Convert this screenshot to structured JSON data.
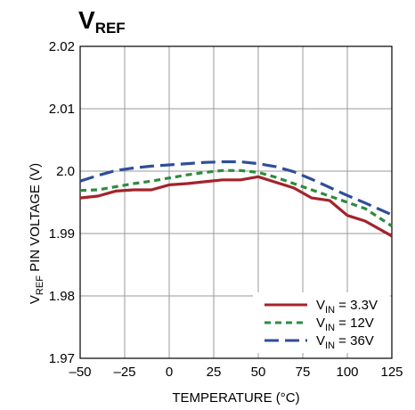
{
  "chart_data": {
    "type": "line",
    "title": {
      "main": "V",
      "sub": "REF"
    },
    "xlabel": "TEMPERATURE (°C)",
    "ylabel": {
      "prefix": "V",
      "sub": "REF",
      "rest": " PIN VOLTAGE (V)"
    },
    "xlim": [
      -50,
      125
    ],
    "ylim": [
      1.97,
      2.02
    ],
    "xticks": [
      -50,
      -25,
      0,
      25,
      50,
      75,
      100,
      125
    ],
    "xtick_labels": [
      "–50",
      "–25",
      "0",
      "25",
      "50",
      "75",
      "100",
      "125"
    ],
    "yticks": [
      1.97,
      1.98,
      1.99,
      2.0,
      2.01,
      2.02
    ],
    "ytick_labels": [
      "1.97",
      "1.98",
      "1.99",
      "2.0",
      "2.01",
      "2.02"
    ],
    "grid": true,
    "legend_position": "bottom-right",
    "series": [
      {
        "name": {
          "prefix": "V",
          "sub": "IN",
          "rest": " = 3.3V"
        },
        "color": "#a3242a",
        "dash": "solid",
        "x": [
          -50,
          -40,
          -30,
          -20,
          -10,
          0,
          10,
          20,
          30,
          40,
          50,
          60,
          70,
          80,
          90,
          100,
          110,
          125
        ],
        "y": [
          1.9957,
          1.996,
          1.9968,
          1.997,
          1.997,
          1.9978,
          1.998,
          1.9983,
          1.9986,
          1.9986,
          1.9991,
          1.9982,
          1.9973,
          1.9957,
          1.9953,
          1.9929,
          1.992,
          1.9896
        ]
      },
      {
        "name": {
          "prefix": "V",
          "sub": "IN",
          "rest": " = 12V"
        },
        "color": "#2e8b3e",
        "dash": "short",
        "x": [
          -50,
          -40,
          -30,
          -20,
          -10,
          0,
          10,
          20,
          30,
          40,
          50,
          60,
          70,
          80,
          90,
          100,
          110,
          125
        ],
        "y": [
          1.9969,
          1.997,
          1.9975,
          1.998,
          1.9984,
          1.9989,
          1.9994,
          1.9998,
          2.0001,
          2.0001,
          1.9998,
          1.999,
          1.998,
          1.997,
          1.996,
          1.995,
          1.994,
          1.9912
        ]
      },
      {
        "name": {
          "prefix": "V",
          "sub": "IN",
          "rest": " = 36V"
        },
        "color": "#2f4e9a",
        "dash": "long",
        "x": [
          -50,
          -40,
          -30,
          -20,
          -10,
          0,
          10,
          20,
          30,
          40,
          50,
          60,
          70,
          80,
          90,
          100,
          110,
          125
        ],
        "y": [
          1.9984,
          1.9993,
          2.0001,
          2.0005,
          2.0008,
          2.001,
          2.0012,
          2.0014,
          2.0015,
          2.0015,
          2.0012,
          2.0007,
          1.9999,
          1.9987,
          1.9974,
          1.9961,
          1.9949,
          1.993
        ]
      }
    ]
  }
}
